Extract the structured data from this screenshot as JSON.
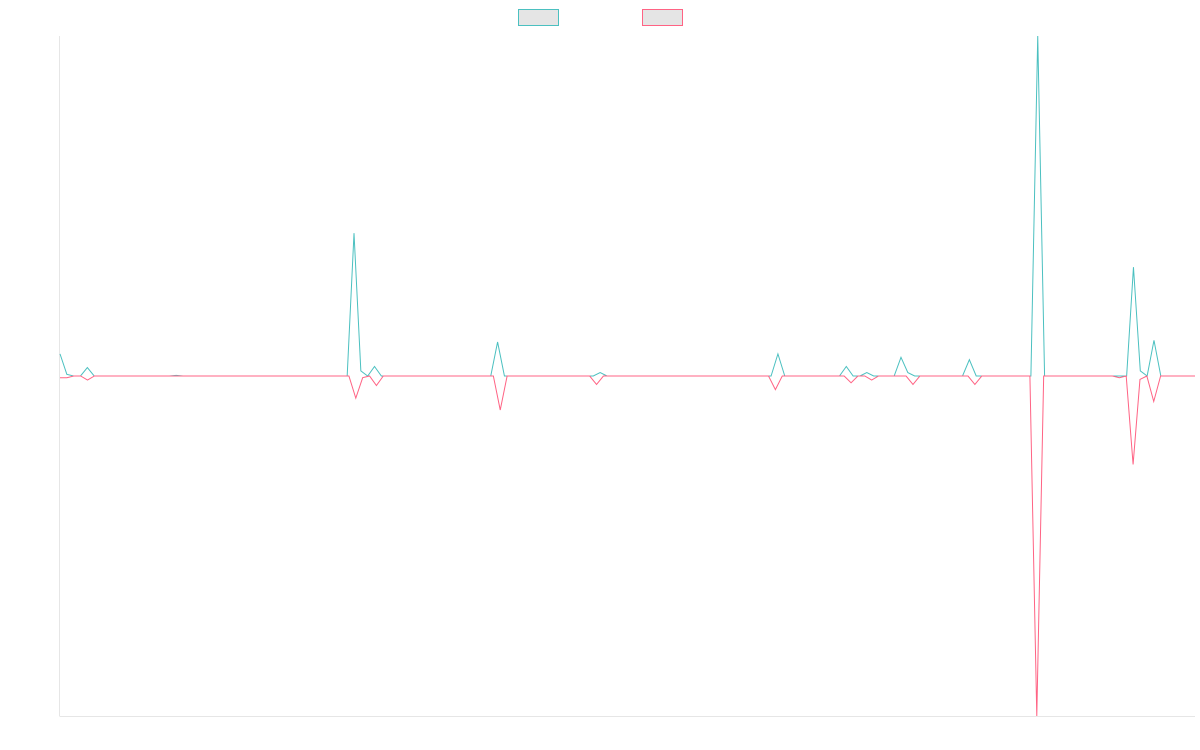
{
  "chart_data": {
    "type": "line",
    "title": "",
    "xlabel": "",
    "ylabel": "",
    "grid": false,
    "legend_position": "top-center",
    "ylim": [
      -1,
      1
    ],
    "series": [
      {
        "color": "#4bc0c0",
        "values": [
          0.065,
          0.005,
          0,
          0,
          0.025,
          0,
          0,
          0,
          0,
          0,
          0,
          0,
          0,
          0,
          0,
          0,
          0,
          0.002,
          0,
          0,
          0,
          0,
          0,
          0,
          0,
          0,
          0,
          0,
          0,
          0,
          0,
          0,
          0,
          0,
          0,
          0,
          0,
          0,
          0,
          0,
          0,
          0,
          0,
          0.42,
          0.015,
          0,
          0.028,
          0,
          0,
          0,
          0,
          0,
          0,
          0,
          0,
          0,
          0,
          0,
          0,
          0,
          0,
          0,
          0,
          0,
          0.1,
          0,
          0,
          0,
          0,
          0,
          0,
          0,
          0,
          0,
          0,
          0,
          0,
          0,
          0,
          0.01,
          0,
          0,
          0,
          0,
          0,
          0,
          0,
          0,
          0,
          0,
          0,
          0,
          0,
          0,
          0,
          0,
          0,
          0,
          0,
          0,
          0,
          0,
          0,
          0,
          0,
          0.065,
          0,
          0,
          0,
          0,
          0,
          0,
          0,
          0,
          0,
          0.028,
          0,
          0,
          0.01,
          0,
          0,
          0,
          0,
          0.055,
          0.01,
          0,
          0,
          0,
          0,
          0,
          0,
          0,
          0,
          0.048,
          0,
          0,
          0,
          0,
          0,
          0,
          0,
          0,
          0,
          1.0,
          0,
          0,
          0,
          0,
          0,
          0,
          0,
          0,
          0,
          0,
          0,
          0,
          0,
          0.32,
          0.015,
          0,
          0.105,
          0,
          0,
          0,
          0,
          0,
          0
        ]
      },
      {
        "color": "#ff6384",
        "values": [
          -0.005,
          -0.005,
          0,
          0,
          -0.012,
          0,
          0,
          0,
          0,
          0,
          0,
          0,
          0,
          0,
          0,
          0,
          0,
          0,
          0,
          0,
          0,
          0,
          0,
          0,
          0,
          0,
          0,
          0,
          0,
          0,
          0,
          0,
          0,
          0,
          0,
          0,
          0,
          0,
          0,
          0,
          0,
          0,
          0,
          -0.065,
          -0.005,
          0,
          -0.028,
          0,
          0,
          0,
          0,
          0,
          0,
          0,
          0,
          0,
          0,
          0,
          0,
          0,
          0,
          0,
          0,
          0,
          -0.1,
          0,
          0,
          0,
          0,
          0,
          0,
          0,
          0,
          0,
          0,
          0,
          0,
          0,
          -0.025,
          0,
          0,
          0,
          0,
          0,
          0,
          0,
          0,
          0,
          0,
          0,
          0,
          0,
          0,
          0,
          0,
          0,
          0,
          0,
          0,
          0,
          0,
          0,
          0,
          0,
          -0.04,
          0,
          0,
          0,
          0,
          0,
          0,
          0,
          0,
          0,
          0,
          -0.02,
          0,
          0,
          -0.012,
          0,
          0,
          0,
          0,
          0,
          -0.025,
          0,
          0,
          0,
          0,
          0,
          0,
          0,
          0,
          -0.025,
          0,
          0,
          0,
          0,
          0,
          0,
          0,
          0,
          -1.0,
          0,
          0,
          0,
          0,
          0,
          0,
          0,
          0,
          0,
          0,
          0,
          -0.005,
          0,
          -0.26,
          -0.01,
          0,
          -0.075,
          0,
          0,
          0,
          0,
          0,
          0
        ]
      }
    ]
  }
}
